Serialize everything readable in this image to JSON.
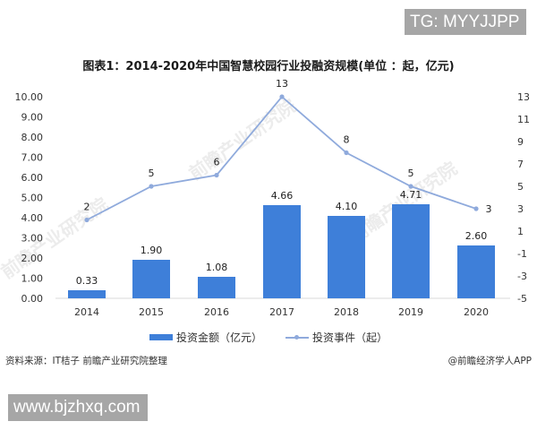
{
  "overlay": {
    "tg_label": "TG: MYYJJPP",
    "website_label": "www.bjzhxq.com"
  },
  "chart_title": "图表1：2014-2020年中国智慧校园行业投融资规模(单位 ：起，亿元)",
  "legend": {
    "bar_label": "投资金额（亿元）",
    "line_label": "投资事件（起）"
  },
  "footer": {
    "source": "资料来源：IT桔子 前瞻产业研究院整理",
    "credit": "@前瞻经济学人APP"
  },
  "watermarks": [
    "前瞻产业研究院",
    "前瞻产业研究院",
    "前瞻产业研究院"
  ],
  "colors": {
    "bar": "#3e7fd9",
    "line": "#8faadc",
    "axis": "#d9d9d9",
    "overlay_bg": "#a6a6a6"
  },
  "chart_data": {
    "type": "bar+line",
    "title": "图表1：2014-2020年中国智慧校园行业投融资规模(单位 ：起，亿元)",
    "categories": [
      "2014",
      "2015",
      "2016",
      "2017",
      "2018",
      "2019",
      "2020"
    ],
    "series": [
      {
        "name": "投资金额（亿元）",
        "type": "bar",
        "axis": "left",
        "values": [
          0.33,
          1.9,
          1.08,
          4.66,
          4.1,
          4.71,
          2.6
        ],
        "labels": [
          "0.33",
          "1.90",
          "1.08",
          "4.66",
          "4.10",
          "4.71",
          "2.60"
        ]
      },
      {
        "name": "投资事件（起）",
        "type": "line",
        "axis": "right",
        "values": [
          2,
          5,
          6,
          13,
          8,
          5,
          3
        ],
        "labels": [
          "2",
          "5",
          "6",
          "13",
          "8",
          "5",
          "3"
        ]
      }
    ],
    "left_axis": {
      "ylim": [
        0,
        10
      ],
      "ticks": [
        "0.00",
        "1.00",
        "2.00",
        "3.00",
        "4.00",
        "5.00",
        "6.00",
        "7.00",
        "8.00",
        "9.00",
        "10.00"
      ]
    },
    "right_axis": {
      "ylim": [
        -5,
        13
      ],
      "ticks": [
        "-5",
        "-3",
        "-1",
        "1",
        "3",
        "5",
        "7",
        "9",
        "11",
        "13"
      ]
    },
    "xlabel": "",
    "ylabel": "",
    "grid": false,
    "legend_position": "bottom"
  }
}
